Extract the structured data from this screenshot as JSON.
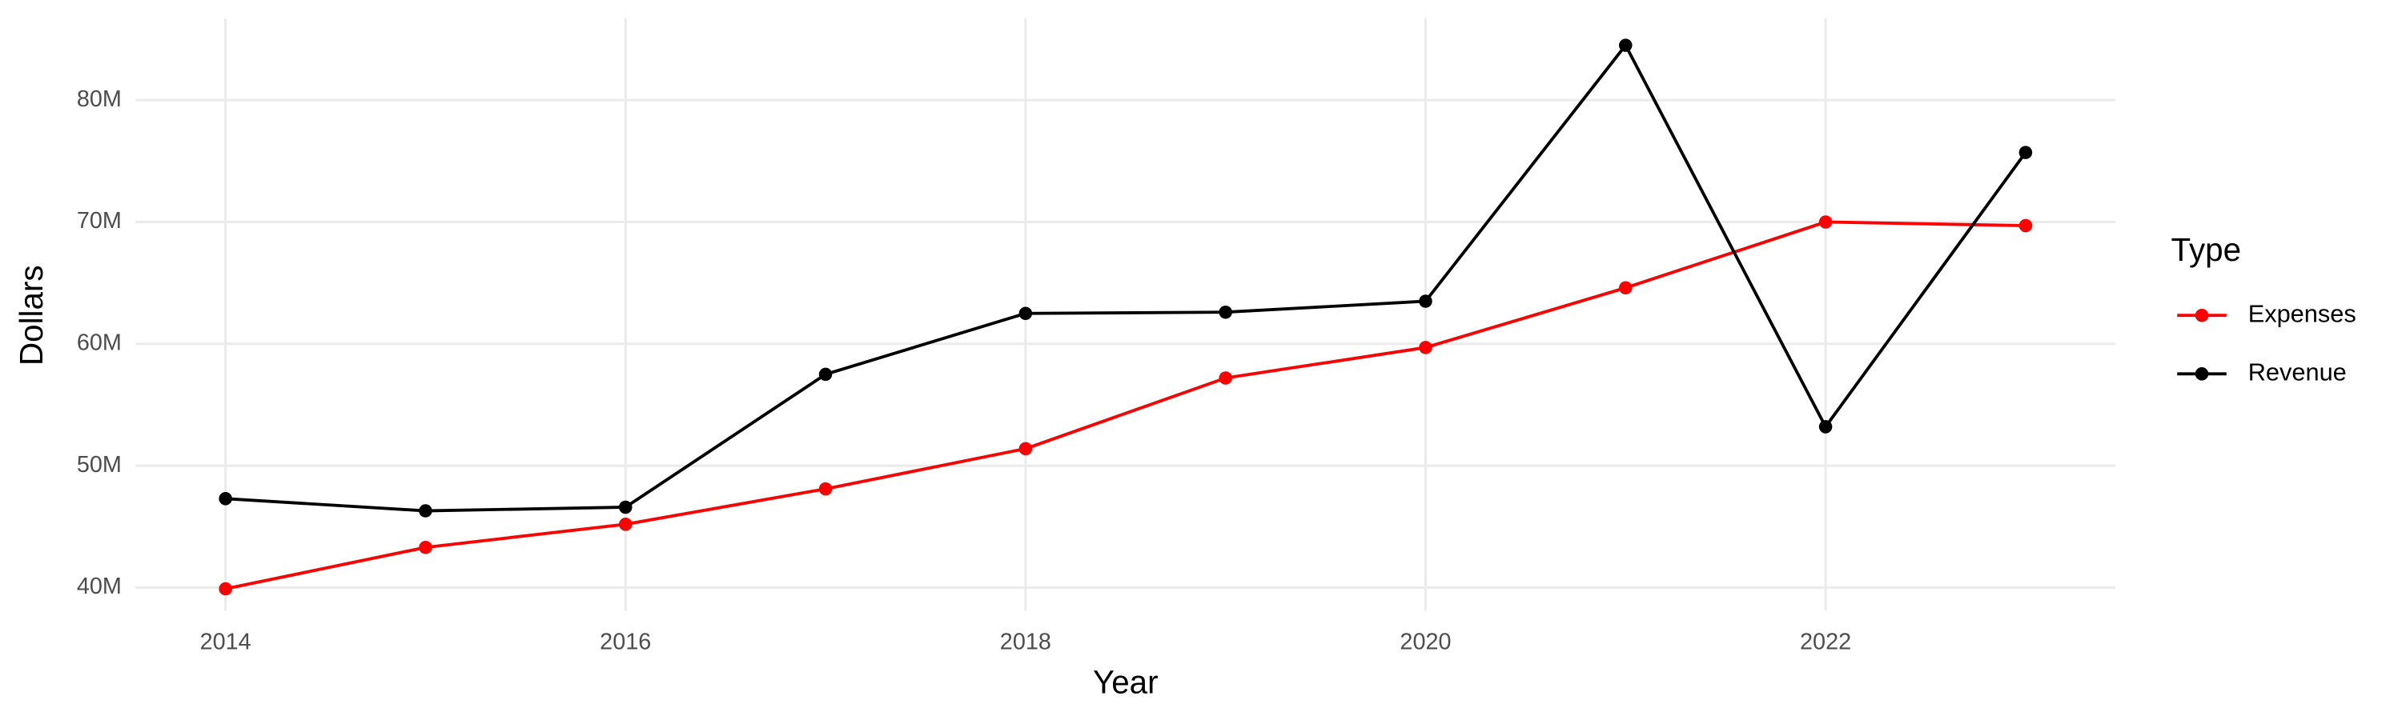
{
  "chart_data": {
    "type": "line",
    "x_label": "Year",
    "y_label": "Dollars",
    "legend_title": "Type",
    "legend_position": "right",
    "grid": true,
    "x": [
      2014,
      2015,
      2016,
      2017,
      2018,
      2019,
      2020,
      2021,
      2022,
      2023
    ],
    "xlim": [
      2013.55,
      2023.45
    ],
    "xticks": [
      2014,
      2016,
      2018,
      2020,
      2022
    ],
    "ylim": [
      38100000,
      86700000
    ],
    "yticks": [
      {
        "value": 40000000,
        "label": "40M"
      },
      {
        "value": 50000000,
        "label": "50M"
      },
      {
        "value": 60000000,
        "label": "60M"
      },
      {
        "value": 70000000,
        "label": "70M"
      },
      {
        "value": 80000000,
        "label": "80M"
      }
    ],
    "series": [
      {
        "name": "Expenses",
        "color": "#ff0000",
        "values": [
          39900000,
          43300000,
          45200000,
          48100000,
          51400000,
          57200000,
          59700000,
          64600000,
          70000000,
          69700000
        ]
      },
      {
        "name": "Revenue",
        "color": "#000000",
        "values": [
          47300000,
          46300000,
          46600000,
          57500000,
          62500000,
          62600000,
          63500000,
          84500000,
          53200000,
          75700000
        ]
      }
    ]
  }
}
